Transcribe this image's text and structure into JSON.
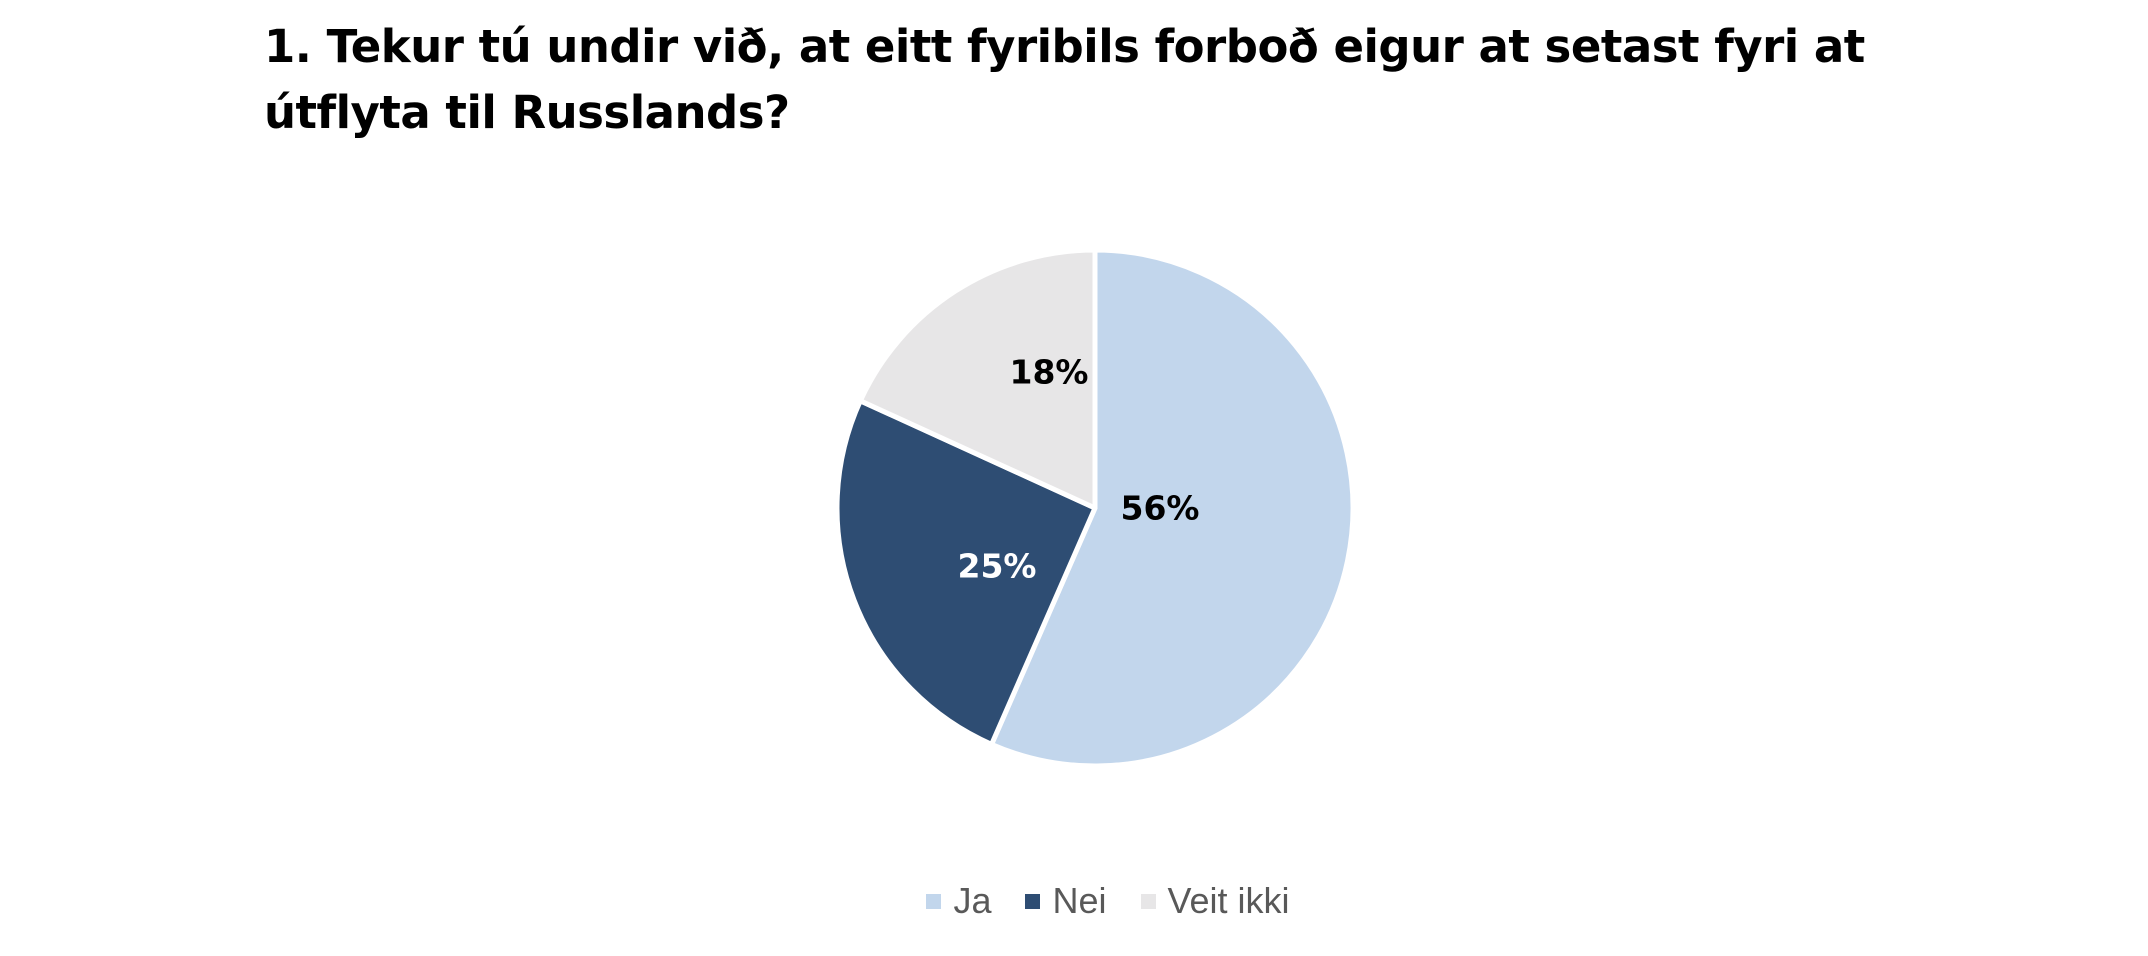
{
  "chart_data": {
    "type": "pie",
    "title": "1. Tekur tú undir við, at eitt fyribils forboð eigur at setast fyri at útflyta til Russlands?",
    "categories": [
      "Ja",
      "Nei",
      "Veit ikki"
    ],
    "values": [
      56,
      25,
      18
    ],
    "data_labels": [
      "56%",
      "25%",
      "18%"
    ],
    "colors": [
      "#c2d6ec",
      "#2e4d73",
      "#e7e6e7"
    ],
    "label_colors": [
      "#000000",
      "#ffffff",
      "#000000"
    ],
    "start_angle": "12 o'clock",
    "direction": "clockwise",
    "legend_position": "bottom"
  }
}
